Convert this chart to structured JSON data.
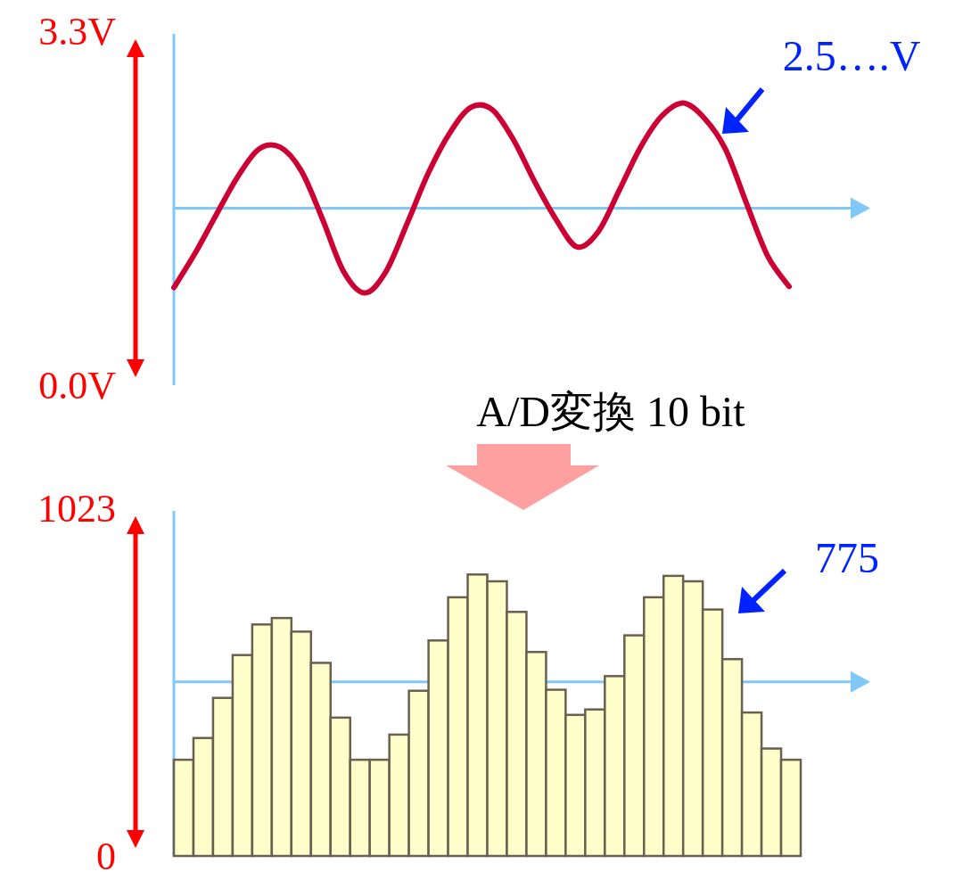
{
  "chart_data": [
    {
      "type": "line",
      "categories": [
        null,
        null,
        null,
        null,
        null,
        null,
        null,
        null,
        null,
        null,
        null,
        null,
        null,
        null,
        null,
        null,
        null,
        null,
        null,
        null,
        null,
        null,
        null,
        null,
        null,
        null,
        null,
        null,
        null,
        null
      ],
      "series": [
        {
          "color": "#cc0033",
          "values": [
            0.91,
            1.23,
            1.59,
            1.94,
            2.2,
            2.22,
            2.0,
            1.55,
            1.06,
            0.86,
            1.06,
            1.51,
            1.98,
            2.35,
            2.59,
            2.57,
            2.29,
            1.9,
            1.55,
            1.29,
            1.43,
            1.82,
            2.22,
            2.51,
            2.63,
            2.49,
            2.2,
            1.69,
            1.2,
            0.92
          ]
        }
      ],
      "ylim": [
        0,
        3.3
      ],
      "yticks": [
        {
          "value": 3.3,
          "label": "3.3V"
        },
        {
          "value": 0,
          "label": "0.0V"
        }
      ],
      "ref_lines": [
        {
          "axis": "y",
          "value": 1.65,
          "color": "#80c8f8"
        }
      ],
      "annotations": [
        "2.5….V"
      ]
    },
    {
      "type": "bar",
      "title": "A/D変換 10 bit",
      "categories": [
        null,
        null,
        null,
        null,
        null,
        null,
        null,
        null,
        null,
        null,
        null,
        null,
        null,
        null,
        null,
        null,
        null,
        null,
        null,
        null,
        null,
        null,
        null,
        null,
        null,
        null,
        null,
        null,
        null,
        null,
        null,
        null
      ],
      "values": [
        283,
        347,
        465,
        591,
        681,
        700,
        660,
        568,
        407,
        283,
        283,
        357,
        486,
        634,
        761,
        828,
        808,
        718,
        600,
        489,
        415,
        431,
        529,
        649,
        761,
        824,
        808,
        725,
        579,
        422,
        316,
        283
      ],
      "color": "#ffffcc",
      "ylim": [
        0,
        1023
      ],
      "yticks": [
        1023,
        0
      ],
      "ref_lines": [
        {
          "axis": "y",
          "value": 512,
          "color": "#80c8f8"
        }
      ],
      "annotations": [
        "775"
      ]
    }
  ]
}
